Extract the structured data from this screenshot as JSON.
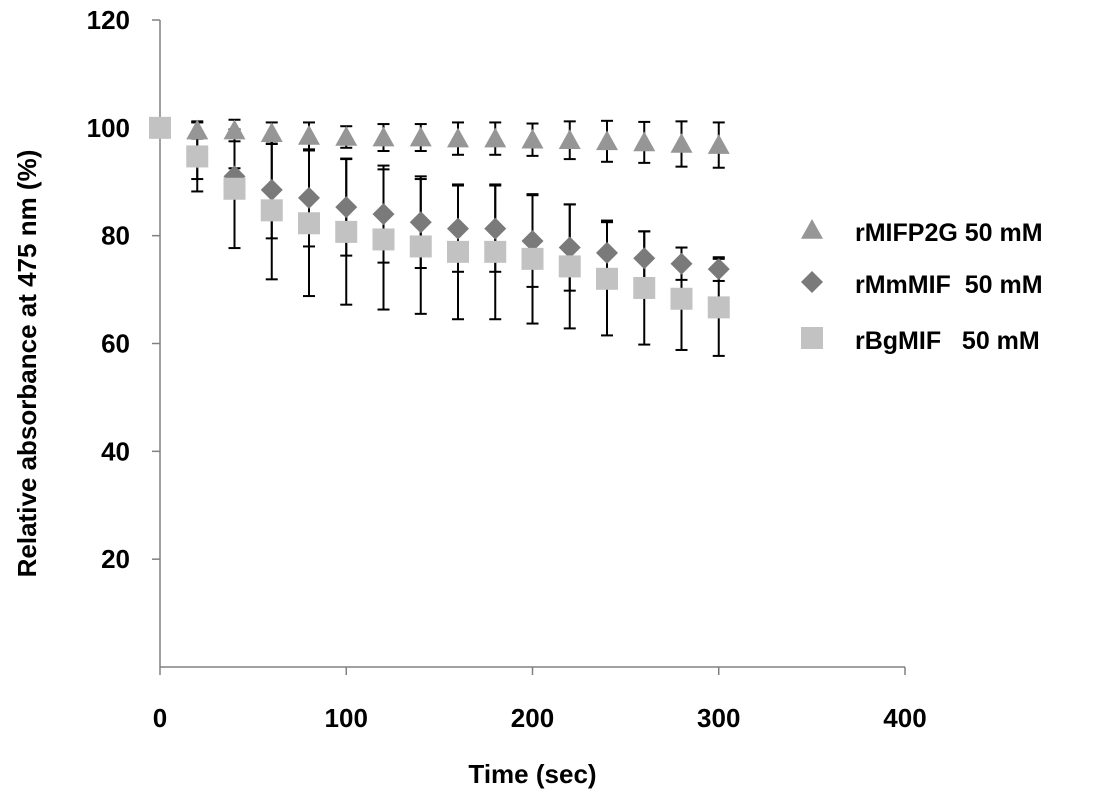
{
  "chart_data": {
    "type": "scatter",
    "xlabel": "Time (sec)",
    "ylabel": "Relative absorbance at 475 nm (%)",
    "xlim": [
      0,
      400
    ],
    "ylim": [
      0,
      120
    ],
    "xticks": [
      0,
      100,
      200,
      300,
      400
    ],
    "yticks": [
      20,
      40,
      60,
      80,
      100,
      120
    ],
    "grid": false,
    "legend_position": "right",
    "x": [
      0,
      20,
      40,
      60,
      80,
      100,
      120,
      140,
      160,
      180,
      200,
      220,
      240,
      260,
      280,
      300
    ],
    "series": [
      {
        "name": "rMIFP2G 50 mM",
        "marker": "triangle",
        "color": "#969696",
        "values": [
          100,
          99.5,
          99.5,
          99,
          98.5,
          98.3,
          98.2,
          98.2,
          98,
          98,
          97.8,
          97.7,
          97.5,
          97.3,
          97,
          96.8
        ],
        "error": [
          0.5,
          1.5,
          2,
          2,
          2.5,
          2,
          2.5,
          2.5,
          3,
          3,
          3,
          3.5,
          3.8,
          3.8,
          4.2,
          4.2
        ]
      },
      {
        "name": "rMmMIF  50 mM",
        "marker": "diamond",
        "color": "#7a7a7a",
        "values": [
          100,
          94.5,
          91,
          88.5,
          87,
          85.3,
          84,
          82.5,
          81.3,
          81.3,
          79,
          77.8,
          76.8,
          75.8,
          74.8,
          73.8
        ],
        "error": [
          0.5,
          4,
          1.5,
          9,
          9,
          9,
          9,
          8.5,
          8,
          8,
          8.5,
          8,
          6,
          5,
          3,
          2.2
        ]
      },
      {
        "name": "rBgMIF   50 mM",
        "marker": "square",
        "color": "#c2c2c2",
        "values": [
          100,
          94.7,
          88.7,
          84.7,
          82.3,
          80.7,
          79.3,
          78,
          77,
          77,
          75.7,
          74.3,
          72,
          70.3,
          68.3,
          66.7
        ],
        "error": [
          0.5,
          6.5,
          11,
          12.8,
          13.5,
          13.5,
          13,
          12.5,
          12.5,
          12.5,
          12,
          11.5,
          10.5,
          10.5,
          9.5,
          9
        ]
      }
    ]
  }
}
